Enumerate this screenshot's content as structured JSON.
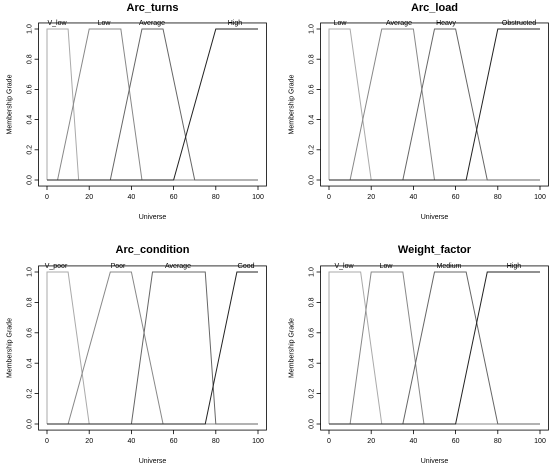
{
  "chart_data": [
    {
      "type": "line",
      "title": "Arc_turns",
      "xlabel": "Universe",
      "ylabel": "Membership Grade",
      "xlim": [
        0,
        100
      ],
      "ylim": [
        0,
        1
      ],
      "x_ticks": [
        "0",
        "20",
        "40",
        "60",
        "80",
        "100"
      ],
      "y_ticks": [
        "0.0",
        "0.2",
        "0.4",
        "0.6",
        "0.8",
        "1.0"
      ],
      "series": [
        {
          "name": "V_low",
          "color": "#aaaaaa",
          "x": [
            0,
            0,
            10,
            15,
            100
          ],
          "y": [
            0,
            1,
            1,
            0,
            0
          ]
        },
        {
          "name": "Low",
          "color": "#888888",
          "x": [
            0,
            5,
            20,
            35,
            45,
            100
          ],
          "y": [
            0,
            0,
            1,
            1,
            0,
            0
          ]
        },
        {
          "name": "Average",
          "color": "#666666",
          "x": [
            0,
            30,
            45,
            55,
            70,
            100
          ],
          "y": [
            0,
            0,
            1,
            1,
            0,
            0
          ]
        },
        {
          "name": "High",
          "color": "#222222",
          "x": [
            0,
            60,
            80,
            100
          ],
          "y": [
            0,
            0,
            1,
            1
          ]
        }
      ]
    },
    {
      "type": "line",
      "title": "Arc_load",
      "xlabel": "Universe",
      "ylabel": "Membership Grade",
      "xlim": [
        0,
        100
      ],
      "ylim": [
        0,
        1
      ],
      "x_ticks": [
        "0",
        "20",
        "40",
        "60",
        "80",
        "100"
      ],
      "y_ticks": [
        "0.0",
        "0.2",
        "0.4",
        "0.6",
        "0.8",
        "1.0"
      ],
      "series": [
        {
          "name": "Low",
          "color": "#aaaaaa",
          "x": [
            0,
            0,
            10,
            20,
            100
          ],
          "y": [
            0,
            1,
            1,
            0,
            0
          ]
        },
        {
          "name": "Average",
          "color": "#888888",
          "x": [
            0,
            10,
            25,
            40,
            50,
            100
          ],
          "y": [
            0,
            0,
            1,
            1,
            0,
            0
          ]
        },
        {
          "name": "Heavy",
          "color": "#666666",
          "x": [
            0,
            35,
            50,
            60,
            75,
            100
          ],
          "y": [
            0,
            0,
            1,
            1,
            0,
            0
          ]
        },
        {
          "name": "Obstructed",
          "color": "#222222",
          "x": [
            0,
            65,
            80,
            100
          ],
          "y": [
            0,
            0,
            1,
            1
          ]
        }
      ]
    },
    {
      "type": "line",
      "title": "Arc_condition",
      "xlabel": "Universe",
      "ylabel": "Membership Grade",
      "xlim": [
        0,
        100
      ],
      "ylim": [
        0,
        1
      ],
      "x_ticks": [
        "0",
        "20",
        "40",
        "60",
        "80",
        "100"
      ],
      "y_ticks": [
        "0.0",
        "0.2",
        "0.4",
        "0.6",
        "0.8",
        "1.0"
      ],
      "series": [
        {
          "name": "V_poor",
          "color": "#aaaaaa",
          "x": [
            0,
            0,
            10,
            20,
            100
          ],
          "y": [
            0,
            1,
            1,
            0,
            0
          ]
        },
        {
          "name": "Poor",
          "color": "#888888",
          "x": [
            0,
            10,
            30,
            40,
            55,
            100
          ],
          "y": [
            0,
            0,
            1,
            1,
            0,
            0
          ]
        },
        {
          "name": "Average",
          "color": "#666666",
          "x": [
            0,
            40,
            50,
            75,
            80,
            100
          ],
          "y": [
            0,
            0,
            1,
            1,
            0,
            0
          ]
        },
        {
          "name": "Good",
          "color": "#222222",
          "x": [
            0,
            75,
            90,
            100
          ],
          "y": [
            0,
            0,
            1,
            1
          ]
        }
      ]
    },
    {
      "type": "line",
      "title": "Weight_factor",
      "xlabel": "Universe",
      "ylabel": "Membership Grade",
      "xlim": [
        0,
        100
      ],
      "ylim": [
        0,
        1
      ],
      "x_ticks": [
        "0",
        "20",
        "40",
        "60",
        "80",
        "100"
      ],
      "y_ticks": [
        "0.0",
        "0.2",
        "0.4",
        "0.6",
        "0.8",
        "1.0"
      ],
      "series": [
        {
          "name": "V_low",
          "color": "#aaaaaa",
          "x": [
            0,
            0,
            15,
            25,
            100
          ],
          "y": [
            0,
            1,
            1,
            0,
            0
          ]
        },
        {
          "name": "Low",
          "color": "#888888",
          "x": [
            0,
            10,
            20,
            35,
            45,
            100
          ],
          "y": [
            0,
            0,
            1,
            1,
            0,
            0
          ]
        },
        {
          "name": "Medium",
          "color": "#666666",
          "x": [
            0,
            35,
            50,
            65,
            80,
            100
          ],
          "y": [
            0,
            0,
            1,
            1,
            0,
            0
          ]
        },
        {
          "name": "High",
          "color": "#222222",
          "x": [
            0,
            60,
            75,
            100
          ],
          "y": [
            0,
            0,
            1,
            1
          ]
        }
      ]
    }
  ]
}
